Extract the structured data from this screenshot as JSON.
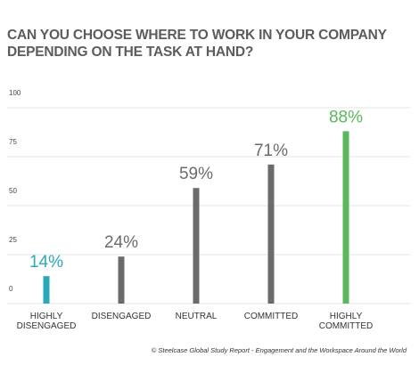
{
  "chart_data": {
    "type": "bar",
    "title": "CAN YOU CHOOSE WHERE TO WORK IN YOUR COMPANY DEPENDING ON THE TASK AT HAND?",
    "categories": [
      [
        "HIGHLY",
        "DISENGAGED"
      ],
      [
        "DISENGAGED"
      ],
      [
        "NEUTRAL"
      ],
      [
        "COMMITTED"
      ],
      [
        "HIGHLY",
        "COMMITTED"
      ]
    ],
    "values": [
      14,
      24,
      59,
      71,
      88
    ],
    "data_labels": [
      "14%",
      "24%",
      "59%",
      "71%",
      "88%"
    ],
    "colors": [
      "#2aa9bb",
      "#6b6b6b",
      "#6b6b6b",
      "#6b6b6b",
      "#5cb85c"
    ],
    "label_colors": [
      "#2aa9bb",
      "#6b6b6b",
      "#6b6b6b",
      "#6b6b6b",
      "#5cb85c"
    ],
    "yticks": [
      0,
      25,
      50,
      75,
      100
    ],
    "ylim": [
      0,
      100
    ],
    "grid": true,
    "gridline_color": "#e6e6e6",
    "xlabel": "",
    "ylabel": ""
  },
  "source": "© Steelcase Global Study Report - Engagement and the Workspace Around the World"
}
